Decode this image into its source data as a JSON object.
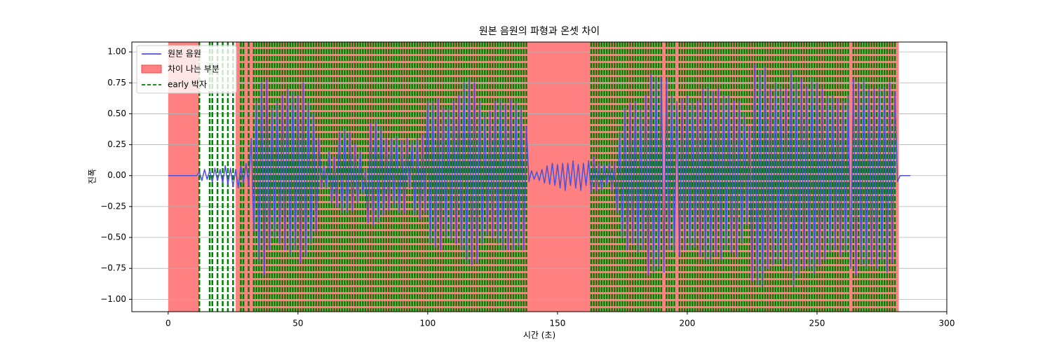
{
  "chart_data": {
    "type": "line",
    "title": "원본 음원의 파형과 온셋 차이",
    "xlabel": "시간 (초)",
    "ylabel": "진폭",
    "xlim": [
      -14,
      300
    ],
    "ylim": [
      -1.1,
      1.08
    ],
    "xticks": [
      0,
      50,
      100,
      150,
      200,
      250,
      300
    ],
    "yticks": [
      {
        "value": -1,
        "label": "−1.00"
      },
      {
        "value": -0.75,
        "label": "−0.75"
      },
      {
        "value": -0.5,
        "label": "−0.50"
      },
      {
        "value": -0.25,
        "label": "−0.25"
      },
      {
        "value": 0,
        "label": "0.00"
      },
      {
        "value": 0.25,
        "label": "0.25"
      },
      {
        "value": 0.5,
        "label": "0.50"
      },
      {
        "value": 0.75,
        "label": "0.75"
      },
      {
        "value": 1,
        "label": "1.00"
      }
    ],
    "grid": "y",
    "legend": "upper left",
    "series": [
      {
        "name": "원본 음원",
        "color": "#5050d8",
        "x": [
          0,
          1,
          2,
          3,
          4,
          5,
          6,
          7,
          8,
          9,
          10,
          11,
          12,
          13,
          14,
          15,
          16,
          17,
          18,
          19,
          20,
          21,
          22,
          23,
          24,
          25,
          26,
          27,
          28,
          29,
          30,
          31,
          32,
          33,
          34,
          35,
          36,
          37,
          38,
          39,
          40,
          41,
          42,
          43,
          44,
          45,
          46,
          47,
          48,
          49,
          50,
          51,
          52,
          53,
          54,
          55,
          56,
          57,
          58,
          59,
          60,
          61,
          62,
          63,
          64,
          65,
          66,
          67,
          68,
          69,
          70,
          71,
          72,
          73,
          74,
          75,
          76,
          77,
          78,
          79,
          80,
          81,
          82,
          83,
          84,
          85,
          86,
          87,
          88,
          89,
          90,
          91,
          92,
          93,
          94,
          95,
          96,
          97,
          98,
          99,
          100,
          101,
          102,
          103,
          104,
          105,
          106,
          107,
          108,
          109,
          110,
          111,
          112,
          113,
          114,
          115,
          116,
          117,
          118,
          119,
          120,
          121,
          122,
          123,
          124,
          125,
          126,
          127,
          128,
          129,
          130,
          131,
          132,
          133,
          134,
          135,
          136,
          137,
          138,
          139,
          140,
          141,
          142,
          143,
          144,
          145,
          146,
          147,
          148,
          149,
          150,
          151,
          152,
          153,
          154,
          155,
          156,
          157,
          158,
          159,
          160,
          161,
          162,
          163,
          164,
          165,
          166,
          167,
          168,
          169,
          170,
          171,
          172,
          173,
          174,
          175,
          176,
          177,
          178,
          179,
          180,
          181,
          182,
          183,
          184,
          185,
          186,
          187,
          188,
          189,
          190,
          191,
          192,
          193,
          194,
          195,
          196,
          197,
          198,
          199,
          200,
          201,
          202,
          203,
          204,
          205,
          206,
          207,
          208,
          209,
          210,
          211,
          212,
          213,
          214,
          215,
          216,
          217,
          218,
          219,
          220,
          221,
          222,
          223,
          224,
          225,
          226,
          227,
          228,
          229,
          230,
          231,
          232,
          233,
          234,
          235,
          236,
          237,
          238,
          239,
          240,
          241,
          242,
          243,
          244,
          245,
          246,
          247,
          248,
          249,
          250,
          251,
          252,
          253,
          254,
          255,
          256,
          257,
          258,
          259,
          260,
          261,
          262,
          263,
          264,
          265,
          266,
          267,
          268,
          269,
          270,
          271,
          272,
          273,
          274,
          275,
          276,
          277,
          278,
          279,
          280,
          281,
          282,
          283,
          284,
          285,
          286
        ],
        "values": [
          0,
          0,
          0,
          0,
          0,
          0,
          0,
          0,
          0,
          0,
          0,
          0,
          0.03,
          -0.04,
          0.05,
          -0.03,
          0.04,
          -0.05,
          0.06,
          -0.04,
          0.05,
          -0.06,
          0.08,
          -0.07,
          0.06,
          -0.09,
          0.05,
          -0.1,
          0.08,
          -0.06,
          0.1,
          -0.08,
          0.3,
          -0.45,
          0.6,
          -0.7,
          0.75,
          -0.8,
          0.77,
          -0.6,
          0.55,
          -0.5,
          0.6,
          -0.55,
          0.65,
          -0.6,
          0.7,
          -0.65,
          0.68,
          -0.6,
          0.65,
          -0.7,
          0.75,
          -0.65,
          0.6,
          -0.55,
          0.5,
          -0.45,
          0.3,
          -0.1,
          0.08,
          -0.1,
          0.2,
          -0.22,
          0.15,
          -0.25,
          0.35,
          -0.3,
          0.38,
          -0.3,
          0.35,
          -0.28,
          0.25,
          -0.22,
          0.2,
          -0.15,
          0.05,
          -0.38,
          0.42,
          -0.4,
          0.45,
          -0.38,
          0.4,
          -0.32,
          0.3,
          -0.28,
          0.3,
          -0.25,
          0.32,
          -0.3,
          0.28,
          -0.3,
          0.3,
          -0.1,
          0.28,
          -0.32,
          0.3,
          -0.35,
          0.33,
          -0.3,
          0.6,
          -0.55,
          0.6,
          -0.58,
          0.62,
          -0.6,
          0.55,
          -0.5,
          0.55,
          -0.52,
          0.6,
          -0.55,
          0.65,
          -0.6,
          0.75,
          -0.7,
          0.78,
          -0.72,
          0.75,
          -0.7,
          0.6,
          -0.55,
          0.5,
          -0.48,
          0.52,
          -0.5,
          0.6,
          -0.55,
          0.62,
          -0.6,
          0.58,
          -0.6,
          0.62,
          -0.6,
          0.6,
          -0.58,
          0.55,
          -0.6,
          0.4,
          -0.05,
          0.04,
          -0.03,
          0.03,
          -0.04,
          0.05,
          -0.06,
          0.08,
          -0.07,
          0.1,
          -0.08,
          0.09,
          -0.1,
          0.1,
          -0.12,
          0.1,
          -0.08,
          0.12,
          -0.1,
          0.09,
          -0.12,
          0.1,
          -0.08,
          0.12,
          -0.14,
          0.15,
          -0.12,
          0.1,
          -0.12,
          0.1,
          -0.08,
          0.1,
          -0.12,
          0.1,
          -0.3,
          0.35,
          -0.5,
          0.55,
          -0.6,
          0.58,
          -0.55,
          0.6,
          -0.62,
          0.55,
          -0.6,
          0.65,
          -0.8,
          0.82,
          -0.78,
          0.8,
          -0.75,
          0.8,
          -0.78,
          0.78,
          -0.6,
          0.65,
          -0.62,
          0.6,
          -0.65,
          0.62,
          -0.6,
          0.65,
          -0.6,
          0.6,
          -0.58,
          0.6,
          -0.65,
          0.7,
          -0.68,
          0.72,
          -0.7,
          0.68,
          -0.65,
          0.7,
          -0.68,
          0.65,
          -0.6,
          0.65,
          -0.62,
          0.6,
          -0.65,
          0.6,
          -0.55,
          0.5,
          -0.4,
          0.4,
          -0.85,
          0.9,
          -0.88,
          0.85,
          -0.9,
          0.88,
          -0.75,
          0.7,
          -0.72,
          0.75,
          -0.7,
          0.72,
          -0.75,
          0.7,
          -0.72,
          0.85,
          -0.9,
          0.75,
          -0.8,
          0.78,
          -0.75,
          0.72,
          -0.75,
          0.78,
          -0.8,
          0.75,
          -0.72,
          0.7,
          -0.68,
          0.65,
          -0.62,
          0.65,
          -0.6,
          0.62,
          -0.65,
          0.6,
          -0.62,
          0.65,
          -0.75,
          0.78,
          -0.8,
          0.75,
          -0.72,
          0.78,
          -0.75,
          0.7,
          -0.72,
          0.7,
          -0.75,
          0.72,
          -0.7,
          0.72,
          -0.78,
          0.75,
          -0.7,
          0.68,
          -0.05,
          0,
          0,
          0,
          0,
          0
        ]
      }
    ],
    "spans": {
      "name": "차이 나는 부분",
      "color": "#ff8080",
      "ranges": [
        [
          0,
          12
        ],
        [
          26,
          281.5
        ]
      ]
    },
    "vlines": {
      "name": "early 박자",
      "color": "#008000",
      "x": [
        12,
        16,
        17,
        19,
        21,
        23,
        25,
        28,
        29,
        31,
        33,
        34,
        35,
        36,
        37,
        38,
        39,
        40,
        41,
        42,
        43,
        44,
        45,
        46,
        47,
        48,
        49,
        50,
        51,
        52,
        53,
        54,
        55,
        56,
        57,
        58,
        59,
        60,
        61,
        62,
        63,
        64,
        65,
        66,
        67,
        68,
        69,
        70,
        71,
        72,
        73,
        74,
        75,
        76,
        77,
        78,
        79,
        80,
        81,
        82,
        83,
        84,
        85,
        86,
        87,
        88,
        89,
        90,
        91,
        92,
        93,
        94,
        95,
        96,
        97,
        98,
        99,
        100,
        101,
        102,
        103,
        104,
        105,
        106,
        107,
        108,
        109,
        110,
        111,
        112,
        113,
        114,
        115,
        116,
        117,
        118,
        119,
        120,
        121,
        122,
        123,
        124,
        125,
        126,
        127,
        128,
        129,
        130,
        131,
        132,
        133,
        134,
        135,
        136,
        137,
        138,
        163,
        164,
        165,
        166,
        167,
        168,
        169,
        170,
        171,
        172,
        173,
        174,
        175,
        176,
        177,
        178,
        179,
        180,
        181,
        182,
        183,
        184,
        185,
        186,
        187,
        188,
        189,
        190,
        192,
        193,
        194,
        195,
        197,
        198,
        199,
        200,
        201,
        202,
        203,
        204,
        205,
        206,
        207,
        208,
        209,
        210,
        211,
        212,
        213,
        214,
        215,
        216,
        217,
        218,
        219,
        220,
        221,
        222,
        223,
        224,
        225,
        226,
        227,
        228,
        229,
        230,
        231,
        232,
        233,
        234,
        235,
        236,
        237,
        238,
        239,
        240,
        241,
        242,
        243,
        244,
        245,
        246,
        247,
        248,
        249,
        250,
        251,
        252,
        253,
        254,
        255,
        256,
        257,
        258,
        259,
        260,
        261,
        262,
        264,
        265,
        266,
        267,
        268,
        269,
        270,
        271,
        272,
        273,
        274,
        275,
        276,
        277,
        278,
        279,
        280
      ]
    }
  }
}
